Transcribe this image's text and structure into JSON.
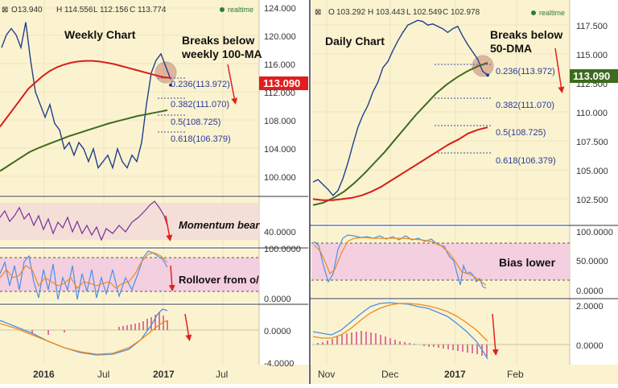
{
  "colors": {
    "background": "#fbf3cf",
    "price_line": "#1f3f8f",
    "ma100": "#d81e1e",
    "ma_green": "#3d6b1f",
    "fib": "#3a4ab4",
    "rsi": "#7a2e9a",
    "zone_fill": "#f3cfe0",
    "macd_blue": "#4a8fe8",
    "macd_orange": "#f08a1a",
    "histogram": "#d23a8a",
    "price_tag": "#e31d1d",
    "arrow": "#e02020"
  },
  "weekly": {
    "ohlc": {
      "o_label": "O",
      "o": "13.940",
      "h_label": "H",
      "h": "114.556",
      "l_label": "L",
      "l": "112.156",
      "c_label": "C",
      "c": "113.774"
    },
    "realtime": "realtime",
    "title": "Weekly Chart",
    "annotation": [
      "Breaks below",
      "weekly 100-MA"
    ],
    "fib_labels": [
      "0.236(113.972)",
      "0.382(111.070)",
      "0.5(108.725)",
      "0.618(106.379)"
    ],
    "price_axis": [
      "124.000",
      "120.000",
      "116.000",
      "112.000",
      "108.000",
      "104.000",
      "100.000"
    ],
    "price_tag": "113.090",
    "momentum": {
      "label": "Momentum bear",
      "axis": [
        "40.0000"
      ]
    },
    "stoch": {
      "label": "Rollover from o/",
      "axis": [
        "100.0000",
        "0.0000"
      ]
    },
    "macd": {
      "axis": [
        "0.0000",
        "-4.0000"
      ]
    },
    "time_axis": [
      "2016",
      "Jul",
      "2017",
      "Jul"
    ]
  },
  "daily": {
    "ohlc": {
      "o_label": "O",
      "o": "103.292",
      "h_label": "H",
      "h": "103.443",
      "l_label": "L",
      "l": "102.549",
      "c_label": "C",
      "c": "102.978"
    },
    "realtime": "realtime",
    "title": "Daily Chart",
    "annotation": [
      "Breaks below",
      "50-DMA"
    ],
    "fib_labels": [
      "0.236(113.972)",
      "0.382(111.070)",
      "0.5(108.725)",
      "0.618(106.379)"
    ],
    "price_axis": [
      "117.500",
      "115.000",
      "112.500",
      "110.000",
      "107.500",
      "105.000",
      "102.500"
    ],
    "price_tag": "113.090",
    "rsi": {
      "label": "Bias lower",
      "axis": [
        "100.0000",
        "50.0000",
        "0.0000"
      ]
    },
    "macd": {
      "axis": [
        "2.0000",
        "0.0000"
      ]
    },
    "time_axis": [
      "Nov",
      "Dec",
      "2017",
      "Feb"
    ]
  },
  "chart_data": [
    {
      "type": "line",
      "title": "Weekly Chart",
      "ylim": [
        96,
        126
      ],
      "series": [
        {
          "values": [
            119,
            121,
            122,
            121,
            119,
            123,
            117,
            112,
            110,
            108,
            110,
            107,
            106,
            103,
            104,
            102,
            104,
            103,
            101,
            103,
            100,
            101,
            102,
            100,
            103,
            101,
            100,
            102,
            101,
            104,
            110,
            115,
            117,
            118,
            116,
            114
          ]
        },
        {
          "values": [
            106.5,
            108,
            109.5,
            111,
            112.5,
            113.5,
            114.5,
            115.3,
            115.9,
            116.3,
            116.6,
            116.8,
            116.9,
            116.9,
            116.8,
            116.6,
            116.4,
            116.1,
            115.8,
            115.5,
            115.2,
            114.9,
            114.6,
            114.3,
            114.2
          ]
        },
        {
          "values": [
            99.5,
            100.5,
            101.5,
            102.5,
            103.2,
            103.8,
            104.4,
            105,
            105.5,
            106,
            106.5,
            107,
            107.4,
            107.8,
            108.2,
            108.5,
            108.8,
            109.1
          ]
        }
      ],
      "fib_levels": [
        113.972,
        111.07,
        108.725,
        106.379
      ],
      "last_price": 113.09
    },
    {
      "type": "line",
      "title": "Daily Chart",
      "ylim": [
        101,
        119
      ],
      "series": [
        {
          "values": [
            104.3,
            104.5,
            104.1,
            103.7,
            103.2,
            103.6,
            104.6,
            105.9,
            107.4,
            108.8,
            109.8,
            110.6,
            111.7,
            112.5,
            113.7,
            114.2,
            115.1,
            115.9,
            116.6,
            117.2,
            117.4,
            117.6,
            117.5,
            117.2,
            117.3,
            117.1,
            116.9,
            116.6,
            116.9,
            117.1,
            116.3,
            115.6,
            115,
            114.4,
            113.4,
            113.1
          ]
        },
        {
          "values": [
            102.4,
            102.6,
            103,
            103.5,
            104.2,
            105,
            105.9,
            106.8,
            107.8,
            108.8,
            109.8,
            110.7,
            111.6,
            112.3,
            112.9,
            113.4,
            113.8,
            114.1
          ]
        },
        {
          "values": [
            102.9,
            102.8,
            102.8,
            102.9,
            103,
            103.2,
            103.5,
            103.9,
            104.4,
            104.9,
            105.4,
            105.9,
            106.4,
            106.9,
            107.4,
            107.8,
            108.3,
            108.6,
            108.8
          ]
        }
      ],
      "fib_levels": [
        113.972,
        111.07,
        108.725,
        106.379
      ],
      "last_price": 113.09
    }
  ]
}
